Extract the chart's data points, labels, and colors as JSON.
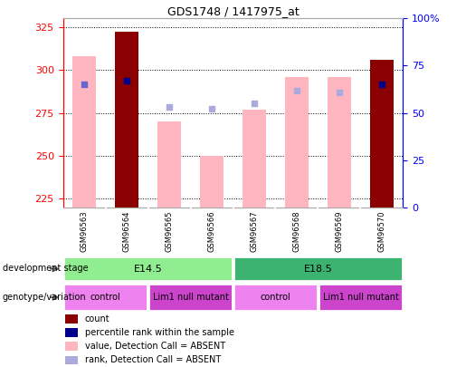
{
  "title": "GDS1748 / 1417975_at",
  "samples": [
    "GSM96563",
    "GSM96564",
    "GSM96565",
    "GSM96566",
    "GSM96567",
    "GSM96568",
    "GSM96569",
    "GSM96570"
  ],
  "bar_values": [
    308,
    322,
    270,
    250,
    277,
    296,
    296,
    306
  ],
  "dark_bars": [
    1,
    7
  ],
  "rank_pct": [
    65,
    67,
    53,
    52,
    55,
    62,
    61,
    65
  ],
  "rank_colors": [
    "#6666cc",
    "#00008b",
    "#aaaadd",
    "#aaaadd",
    "#aaaadd",
    "#aaaadd",
    "#aaaadd",
    "#00008b"
  ],
  "ylim_left": [
    220,
    330
  ],
  "yticks_left": [
    225,
    250,
    275,
    300,
    325
  ],
  "ylim_right": [
    0,
    100
  ],
  "yticks_right": [
    0,
    25,
    50,
    75,
    100
  ],
  "bar_color_dark": "#8b0000",
  "bar_color_light": "#ffb6c1",
  "dev_groups": [
    {
      "label": "E14.5",
      "start": 0,
      "end": 4,
      "color": "#90ee90"
    },
    {
      "label": "E18.5",
      "start": 4,
      "end": 8,
      "color": "#3cb371"
    }
  ],
  "geno_groups": [
    {
      "label": "control",
      "start": 0,
      "end": 2,
      "color": "#ee82ee"
    },
    {
      "label": "Lim1 null mutant",
      "start": 2,
      "end": 4,
      "color": "#cc44cc"
    },
    {
      "label": "control",
      "start": 4,
      "end": 6,
      "color": "#ee82ee"
    },
    {
      "label": "Lim1 null mutant",
      "start": 6,
      "end": 8,
      "color": "#cc44cc"
    }
  ],
  "legend": [
    {
      "label": "count",
      "color": "#8b0000"
    },
    {
      "label": "percentile rank within the sample",
      "color": "#00008b"
    },
    {
      "label": "value, Detection Call = ABSENT",
      "color": "#ffb6c1"
    },
    {
      "label": "rank, Detection Call = ABSENT",
      "color": "#aaaadd"
    }
  ],
  "row_label_dev": "development stage",
  "row_label_geno": "genotype/variation",
  "background_color": "#ffffff"
}
